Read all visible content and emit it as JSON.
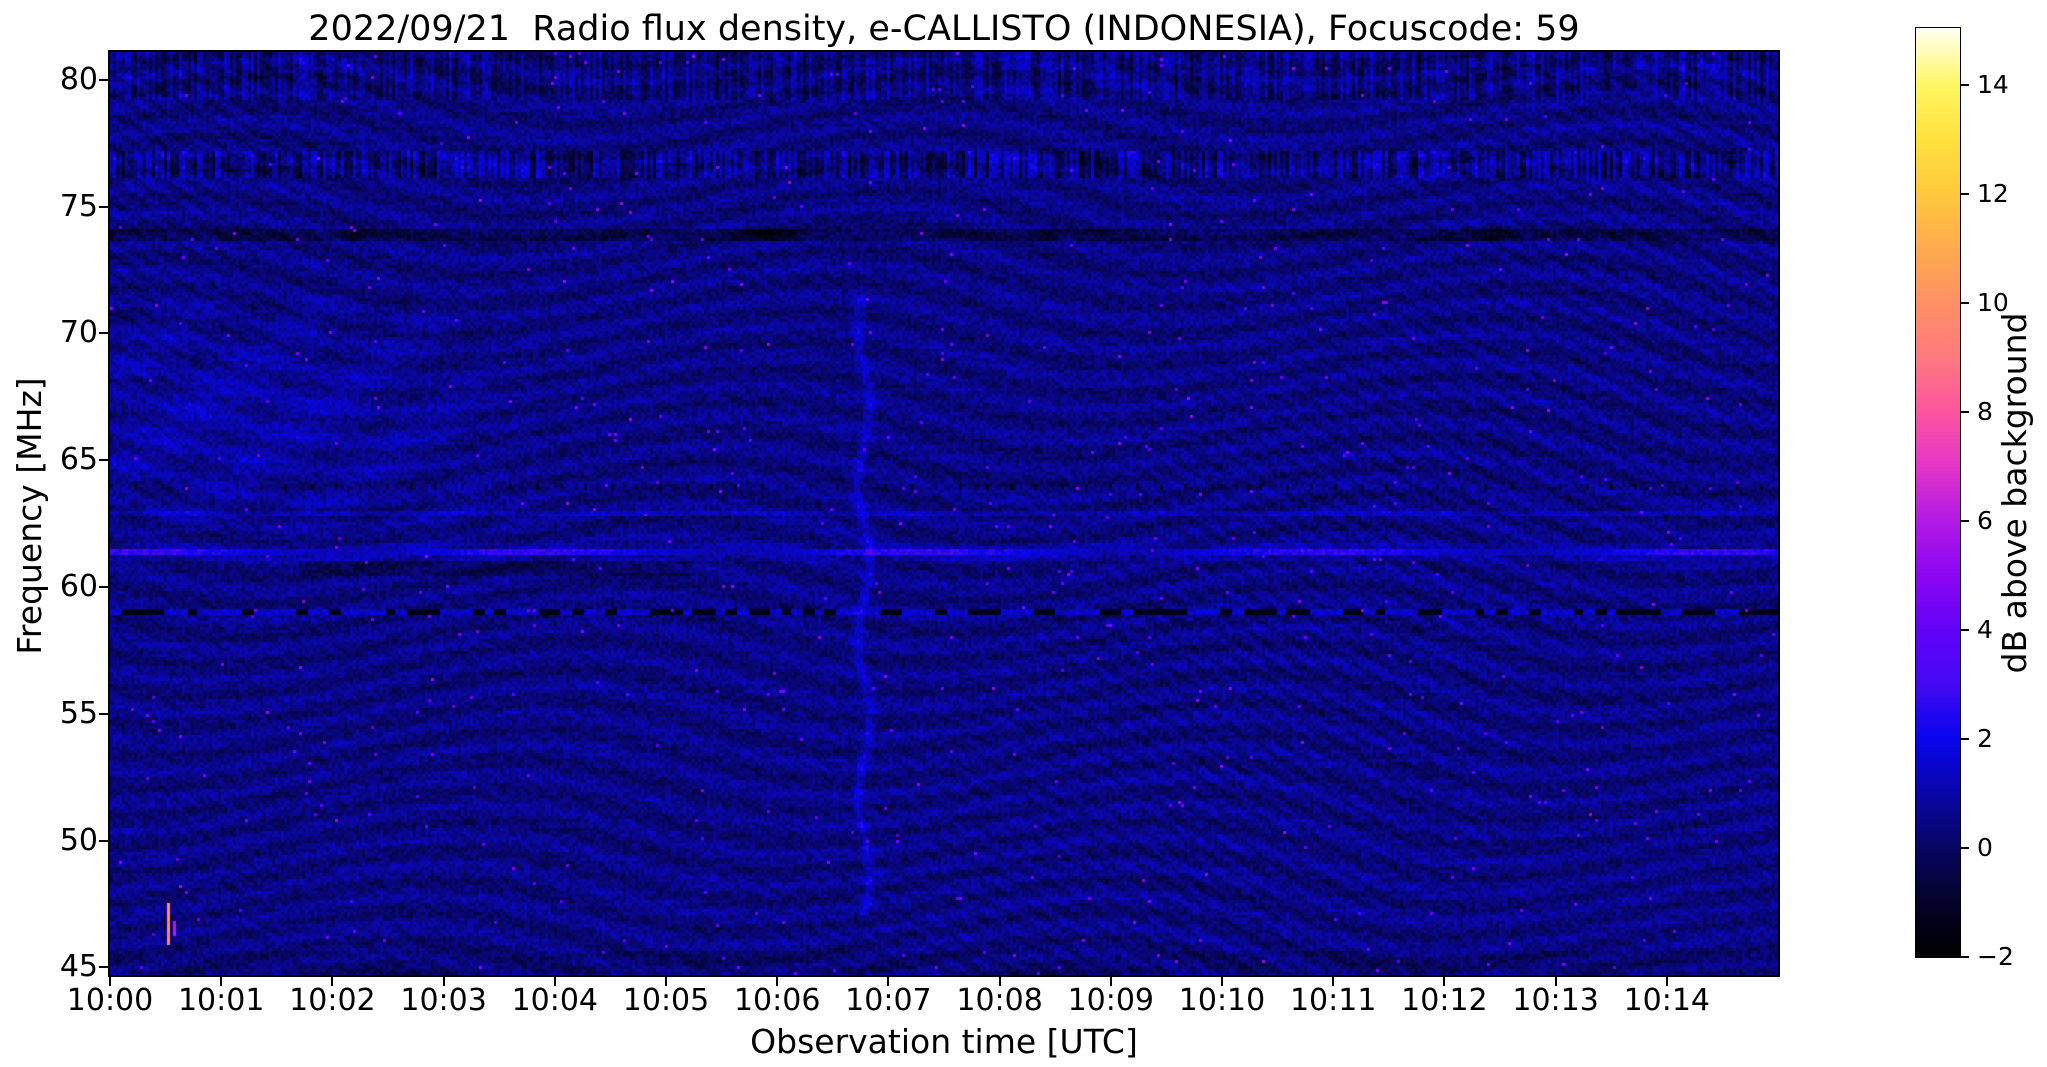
{
  "title": "2022/09/21  Radio flux density, e-CALLISTO (INDONESIA), Focuscode: 59",
  "x_axis": {
    "label": "Observation time [UTC]",
    "ticks": [
      {
        "label": "10:00",
        "minute": 0
      },
      {
        "label": "10:01",
        "minute": 1
      },
      {
        "label": "10:02",
        "minute": 2
      },
      {
        "label": "10:03",
        "minute": 3
      },
      {
        "label": "10:04",
        "minute": 4
      },
      {
        "label": "10:05",
        "minute": 5
      },
      {
        "label": "10:06",
        "minute": 6
      },
      {
        "label": "10:07",
        "minute": 7
      },
      {
        "label": "10:08",
        "minute": 8
      },
      {
        "label": "10:09",
        "minute": 9
      },
      {
        "label": "10:10",
        "minute": 10
      },
      {
        "label": "10:11",
        "minute": 11
      },
      {
        "label": "10:12",
        "minute": 12
      },
      {
        "label": "10:13",
        "minute": 13
      },
      {
        "label": "10:14",
        "minute": 14
      }
    ]
  },
  "y_axis": {
    "label": "Frequency [MHz]",
    "ticks": [
      {
        "label": "80",
        "mhz": 80
      },
      {
        "label": "75",
        "mhz": 75
      },
      {
        "label": "70",
        "mhz": 70
      },
      {
        "label": "65",
        "mhz": 65
      },
      {
        "label": "60",
        "mhz": 60
      },
      {
        "label": "55",
        "mhz": 55
      },
      {
        "label": "50",
        "mhz": 50
      },
      {
        "label": "45",
        "mhz": 45
      }
    ]
  },
  "colorbar": {
    "label": "dB above background",
    "ticks": [
      {
        "label": "−2",
        "db": -2
      },
      {
        "label": "0",
        "db": 0
      },
      {
        "label": "2",
        "db": 2
      },
      {
        "label": "4",
        "db": 4
      },
      {
        "label": "6",
        "db": 6
      },
      {
        "label": "8",
        "db": 8
      },
      {
        "label": "10",
        "db": 10
      },
      {
        "label": "12",
        "db": 12
      },
      {
        "label": "14",
        "db": 14
      }
    ],
    "range_db": [
      -2,
      15.05
    ],
    "colormap_stops": [
      {
        "db": -2,
        "color": "#000000"
      },
      {
        "db": -1,
        "color": "#04032a"
      },
      {
        "db": 0,
        "color": "#080663"
      },
      {
        "db": 1,
        "color": "#0a06a8"
      },
      {
        "db": 2,
        "color": "#0805ee"
      },
      {
        "db": 3,
        "color": "#4609f3"
      },
      {
        "db": 4,
        "color": "#6303f8"
      },
      {
        "db": 5,
        "color": "#8c07f2"
      },
      {
        "db": 6,
        "color": "#b31ae5"
      },
      {
        "db": 7,
        "color": "#e436c9"
      },
      {
        "db": 8,
        "color": "#fc55a0"
      },
      {
        "db": 9,
        "color": "#ff7a80"
      },
      {
        "db": 10,
        "color": "#ff9166"
      },
      {
        "db": 11,
        "color": "#ffab50"
      },
      {
        "db": 12,
        "color": "#ffc93e"
      },
      {
        "db": 13,
        "color": "#ffe13e"
      },
      {
        "db": 14,
        "color": "#fff763"
      },
      {
        "db": 15.05,
        "color": "#fffff2"
      }
    ]
  },
  "chart_data": {
    "type": "heatmap",
    "title": "2022/09/21  Radio flux density, e-CALLISTO (INDONESIA), Focuscode: 59",
    "xlabel": "Observation time [UTC]",
    "ylabel": "Frequency [MHz]",
    "x_range_utc": [
      "10:00:00",
      "10:15:00"
    ],
    "x_tick_labels": [
      "10:00",
      "10:01",
      "10:02",
      "10:03",
      "10:04",
      "10:05",
      "10:06",
      "10:07",
      "10:08",
      "10:09",
      "10:10",
      "10:11",
      "10:12",
      "10:13",
      "10:14"
    ],
    "y_range_mhz": [
      44.7,
      81.1
    ],
    "y_tick_labels": [
      "80",
      "75",
      "70",
      "65",
      "60",
      "55",
      "50",
      "45"
    ],
    "color_scale": {
      "label": "dB above background",
      "range_db": [
        -2,
        15
      ],
      "ticks_db": [
        -2,
        0,
        2,
        4,
        6,
        8,
        10,
        12,
        14
      ]
    },
    "background": {
      "mean_db": 0.45,
      "noise_peak_to_peak_db": 1.3,
      "pattern": "curved wavy interference bands and diagonal fringes, amplitude about 0.5 dB, over dark-blue quiet solar spectrum"
    },
    "features": [
      {
        "kind": "bright_horizontal_carrier",
        "freq_mhz": 61.3,
        "level_db": 2.5,
        "time_extent": "full"
      },
      {
        "kind": "faint_bright_carrier",
        "freq_mhz": 62.9,
        "level_db": 1.5,
        "time_extent": "full"
      },
      {
        "kind": "dark_dotted_interference_line",
        "freq_mhz": 59.0,
        "level_db": -1.5,
        "time_extent": "full",
        "note": "alternating black and bright-blue dashes"
      },
      {
        "kind": "dark_smear_below_carrier",
        "freq_mhz_range": [
          60.4,
          61.0
        ],
        "time_range_utc": [
          "10:01:45",
          "10:04:15"
        ]
      },
      {
        "kind": "dark_band",
        "freq_mhz": 73.8,
        "level_db": -0.8,
        "time_extent": "full"
      },
      {
        "kind": "speckled_band",
        "freq_mhz_range": [
          76.2,
          77.1
        ],
        "note": "fine bright/dark vertical speckle"
      },
      {
        "kind": "striped_noisy_band",
        "freq_mhz_range": [
          79.3,
          81.1
        ],
        "note": "columnar noise striping near top edge"
      },
      {
        "kind": "dotted_tick_row",
        "freq_mhz": 63.9,
        "note": "regularly spaced tiny dark ticks"
      },
      {
        "kind": "vertical_enhancement",
        "time_utc": "10:06:47",
        "freq_mhz_range": [
          47,
          71.5
        ],
        "level_db": 1.5,
        "note": "faint wavy bright vertical streak"
      },
      {
        "kind": "point_burst",
        "time_utc": "10:00:31",
        "freq_mhz_range": [
          45.9,
          47.5
        ],
        "level_db": 10,
        "note": "tiny salmon/magenta vertical speck near lower-left corner"
      },
      {
        "kind": "diffuse_enhancement",
        "time_range_utc": [
          "10:00:00",
          "10:02:00"
        ],
        "freq_mhz_range": [
          62,
          71
        ],
        "note": "brighter diagonal fringe wedge at upper left"
      }
    ]
  }
}
